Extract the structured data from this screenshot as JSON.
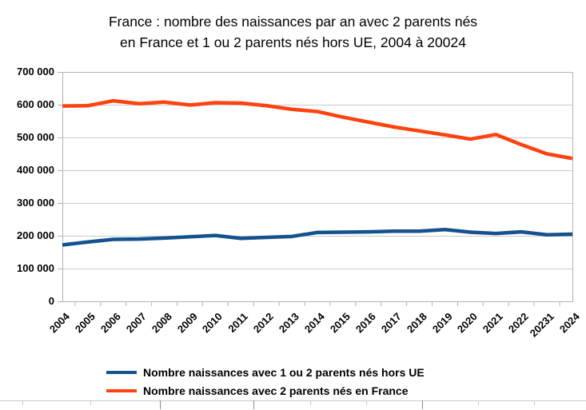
{
  "title": {
    "line1": "France : nombre des naissances par an avec 2 parents nés",
    "line2": "en France et 1 ou 2 parents nés hors UE, 2004 à 20024"
  },
  "colors": {
    "series_hors_ue": "#15518e",
    "series_france": "#ff420e",
    "gridline": "#c9c9c9",
    "axis": "#b3b3b3",
    "cell_border_dark": "#888888"
  },
  "legend": [
    {
      "label": "Nombre naissances avec 1 ou 2 parents nés hors UE",
      "color": "#15518e"
    },
    {
      "label": "Nombre naissances avec 2 parents nés en France",
      "color": "#ff420e"
    }
  ],
  "chart_data": {
    "type": "line",
    "title": "France : nombre des naissances par an avec 2 parents nés en France et 1 ou 2 parents nés hors UE, 2004 à 20024",
    "categories": [
      "2004",
      "2005",
      "2006",
      "2007",
      "2008",
      "2009",
      "2010",
      "2011",
      "2012",
      "2013",
      "2014",
      "2015",
      "2016",
      "2017",
      "2018",
      "2019",
      "2020",
      "2021",
      "2022",
      "20231",
      "2024"
    ],
    "series": [
      {
        "name": "Nombre naissances avec 1 ou 2 parents nés hors UE",
        "color": "#15518e",
        "values": [
          172000,
          181000,
          189000,
          190000,
          193000,
          197000,
          201000,
          192000,
          195000,
          198000,
          210000,
          211000,
          212000,
          214000,
          214000,
          219000,
          211000,
          207000,
          212000,
          203000,
          205000
        ]
      },
      {
        "name": "Nombre naissances avec 2 parents nés en France",
        "color": "#ff420e",
        "values": [
          596000,
          597000,
          612000,
          603000,
          608000,
          599000,
          606000,
          605000,
          597000,
          586000,
          579000,
          562000,
          547000,
          532000,
          520000,
          508000,
          495000,
          509000,
          478000,
          450000,
          436000
        ]
      }
    ],
    "xlabel": "",
    "ylabel": "",
    "ylim": [
      0,
      700000
    ],
    "ytick_step": 100000,
    "ytick_labels": [
      "0",
      "100 000",
      "200 000",
      "300 000",
      "400 000",
      "500 000",
      "600 000",
      "700 000"
    ],
    "grid": true,
    "legend_position": "bottom"
  }
}
